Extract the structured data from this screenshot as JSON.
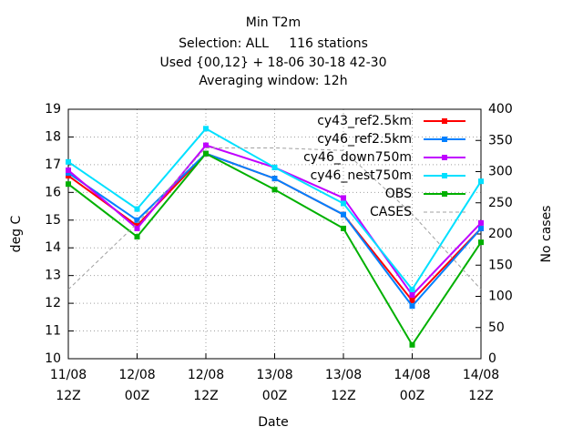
{
  "chart_data": {
    "type": "line",
    "title": "Min T2m",
    "subtitles": [
      "Selection: ALL     116 stations",
      "Used {00,12} + 18-06 30-18 42-30",
      "Averaging window: 12h"
    ],
    "xlabel": "Date",
    "ylabel": "deg C",
    "y2label": "No cases",
    "categories": [
      "11/08",
      "12/08",
      "12/08",
      "13/08",
      "13/08",
      "14/08",
      "14/08"
    ],
    "category_sublabels": [
      "12Z",
      "00Z",
      "12Z",
      "00Z",
      "12Z",
      "00Z",
      "12Z"
    ],
    "ylim": [
      10,
      19
    ],
    "yticks": [
      10,
      11,
      12,
      13,
      14,
      15,
      16,
      17,
      18,
      19
    ],
    "y2lim": [
      0,
      400
    ],
    "y2ticks": [
      0,
      50,
      100,
      150,
      200,
      250,
      300,
      350,
      400
    ],
    "grid": true,
    "legend": "top-right",
    "series": [
      {
        "name": "cy43_ref2.5km",
        "color": "#ff0000",
        "values": [
          16.6,
          14.8,
          17.4,
          16.5,
          15.2,
          12.1,
          14.7
        ]
      },
      {
        "name": "cy46_ref2.5km",
        "color": "#0080ff",
        "values": [
          16.7,
          15.0,
          17.4,
          16.5,
          15.2,
          11.9,
          14.7
        ]
      },
      {
        "name": "cy46_down750m",
        "color": "#c000ff",
        "values": [
          16.8,
          14.7,
          17.7,
          16.9,
          15.8,
          12.3,
          14.9
        ]
      },
      {
        "name": "cy46_nest750m",
        "color": "#00e0ff",
        "values": [
          17.1,
          15.4,
          18.3,
          16.9,
          15.6,
          12.5,
          16.4
        ]
      },
      {
        "name": "OBS",
        "color": "#00b000",
        "values": [
          16.3,
          14.4,
          17.4,
          16.1,
          14.7,
          10.5,
          14.2
        ]
      },
      {
        "name": "CASES",
        "color": "#a0a0a0",
        "dashed": true,
        "axis": "y2",
        "values": [
          111,
          217,
          338,
          338,
          334,
          232,
          111
        ]
      }
    ]
  }
}
